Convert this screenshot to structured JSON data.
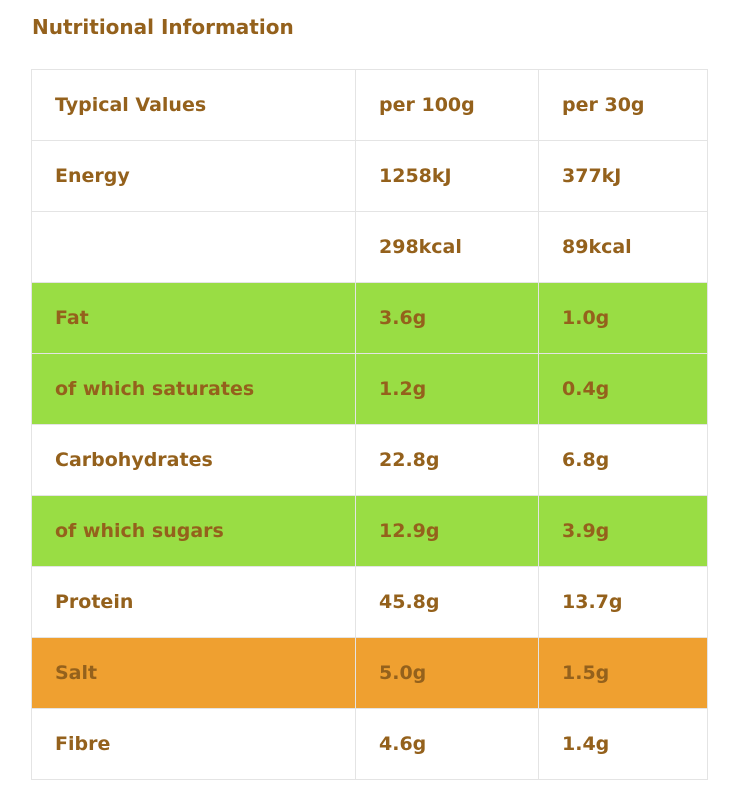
{
  "title": "Nutritional Information",
  "colors": {
    "text": "#94611c",
    "green": "#99dd44",
    "amber": "#efa030",
    "border": "#e4e4e4"
  },
  "table": {
    "rows": [
      {
        "label": "Typical Values",
        "per100": "per 100g",
        "per30": "per 30g",
        "color": "white"
      },
      {
        "label": "Energy",
        "per100": "1258kJ",
        "per30": "377kJ",
        "color": "white"
      },
      {
        "label": "",
        "per100": "298kcal",
        "per30": "89kcal",
        "color": "white"
      },
      {
        "label": "Fat",
        "per100": "3.6g",
        "per30": "1.0g",
        "color": "green"
      },
      {
        "label": "of which saturates",
        "per100": "1.2g",
        "per30": "0.4g",
        "color": "green"
      },
      {
        "label": "Carbohydrates",
        "per100": "22.8g",
        "per30": "6.8g",
        "color": "white"
      },
      {
        "label": "of which sugars",
        "per100": "12.9g",
        "per30": "3.9g",
        "color": "green"
      },
      {
        "label": "Protein",
        "per100": "45.8g",
        "per30": "13.7g",
        "color": "white"
      },
      {
        "label": "Salt",
        "per100": "5.0g",
        "per30": "1.5g",
        "color": "amber"
      },
      {
        "label": "Fibre",
        "per100": "4.6g",
        "per30": "1.4g",
        "color": "white"
      }
    ]
  }
}
